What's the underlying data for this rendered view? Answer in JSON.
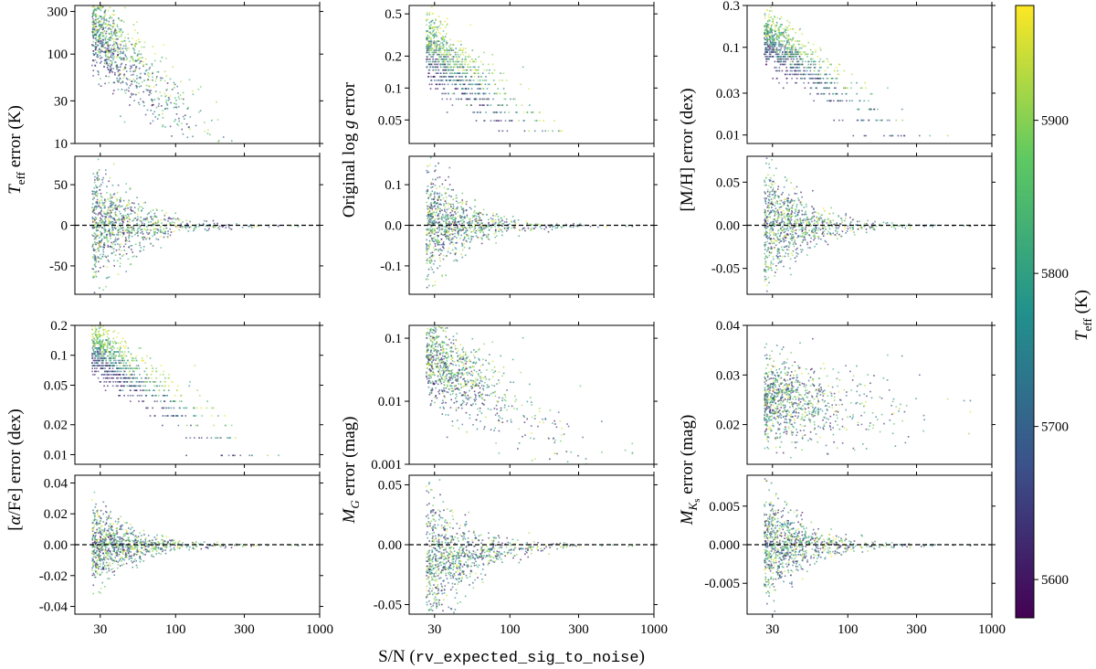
{
  "figure": {
    "xlabel_prefix": "S/N (",
    "xlabel_code": "rv_expected_sig_to_noise",
    "xlabel_suffix": ")",
    "colorbar": {
      "label": "T_eff (K)",
      "range": [
        5575,
        5975
      ],
      "ticks": [
        "5600",
        "5700",
        "5800",
        "5900"
      ],
      "colors": [
        "#440154",
        "#3b528b",
        "#21918c",
        "#5ec962",
        "#fde725"
      ]
    }
  },
  "chart_data": [
    {
      "type": "scatter",
      "title": "",
      "xlabel": "S/N",
      "columns": [
        {
          "ylabel": "T_eff error (K)",
          "top": {
            "yscale": "log",
            "ylim": [
              10,
              350
            ],
            "yticks": [
              "10",
              "30",
              "100",
              "300"
            ],
            "band": "powerlaw",
            "center_at_30": 160,
            "slope": -1.5,
            "spread": 0.55
          },
          "bottom": {
            "yscale": "linear",
            "ylim": [
              -85,
              85
            ],
            "yticks": [
              "-50",
              "0",
              "50"
            ],
            "band": "funnel",
            "amplitude_at_30": 35
          }
        },
        {
          "ylabel": "Original log g error",
          "top": {
            "yscale": "log",
            "ylim": [
              0.03,
              0.6
            ],
            "yticks": [
              "0.05",
              "0.1",
              "0.2",
              "0.5"
            ],
            "band": "quantized",
            "center_at_30": 0.22,
            "slope": -1.0,
            "spread": 0.35
          },
          "bottom": {
            "yscale": "linear",
            "ylim": [
              -0.17,
              0.17
            ],
            "yticks": [
              "-0.1",
              "0.0",
              "0.1"
            ],
            "band": "funnel",
            "amplitude_at_30": 0.06
          }
        },
        {
          "ylabel": "[M/H] error (dex)",
          "top": {
            "yscale": "log",
            "ylim": [
              0.008,
              0.3
            ],
            "yticks": [
              "0.01",
              "0.03",
              "0.1",
              "0.3"
            ],
            "band": "quantized",
            "center_at_30": 0.12,
            "slope": -1.15,
            "spread": 0.3
          },
          "bottom": {
            "yscale": "linear",
            "ylim": [
              -0.08,
              0.08
            ],
            "yticks": [
              "-0.05",
              "0.00",
              "0.05"
            ],
            "band": "funnel",
            "amplitude_at_30": 0.03
          }
        }
      ]
    },
    {
      "type": "scatter",
      "title": "",
      "xlabel": "S/N (rv_expected_sig_to_noise)",
      "xscale": "log",
      "xlim": [
        20,
        1000
      ],
      "xticks": [
        "30",
        "100",
        "300",
        "1000"
      ],
      "columns": [
        {
          "ylabel": "[α/Fe] error (dex)",
          "top": {
            "yscale": "log",
            "ylim": [
              0.008,
              0.2
            ],
            "yticks": [
              "0.01",
              "0.02",
              "0.05",
              "0.1",
              "0.2"
            ],
            "band": "quantized",
            "center_at_30": 0.11,
            "slope": -1.0,
            "spread": 0.25
          },
          "bottom": {
            "yscale": "linear",
            "ylim": [
              -0.045,
              0.045
            ],
            "yticks": [
              "-0.04",
              "-0.02",
              "0.00",
              "0.02",
              "0.04"
            ],
            "band": "funnel",
            "amplitude_at_30": 0.012
          }
        },
        {
          "ylabel": "M_G error (mag)",
          "top": {
            "yscale": "log",
            "ylim": [
              0.001,
              0.16
            ],
            "yticks": [
              "0.001",
              "0.01",
              "0.1"
            ],
            "band": "powerlaw",
            "center_at_30": 0.045,
            "slope": -1.3,
            "spread": 0.9
          },
          "bottom": {
            "yscale": "linear",
            "ylim": [
              -0.058,
              0.058
            ],
            "yticks": [
              "-0.05",
              "0.00",
              "0.05"
            ],
            "band": "funnel_skew",
            "amplitude_at_30": 0.02
          }
        },
        {
          "ylabel": "M_Ks error (mag)",
          "top": {
            "yscale": "linear",
            "ylim": [
              0.012,
              0.04
            ],
            "yticks": [
              "0.02",
              "0.03",
              "0.04"
            ],
            "band": "flat",
            "center_at_30": 0.025,
            "slope": -0.05,
            "spread": 0.004
          },
          "bottom": {
            "yscale": "linear",
            "ylim": [
              -0.009,
              0.009
            ],
            "yticks": [
              "-0.005",
              "0.000",
              "0.005"
            ],
            "band": "funnel",
            "amplitude_at_30": 0.003
          }
        }
      ]
    }
  ]
}
